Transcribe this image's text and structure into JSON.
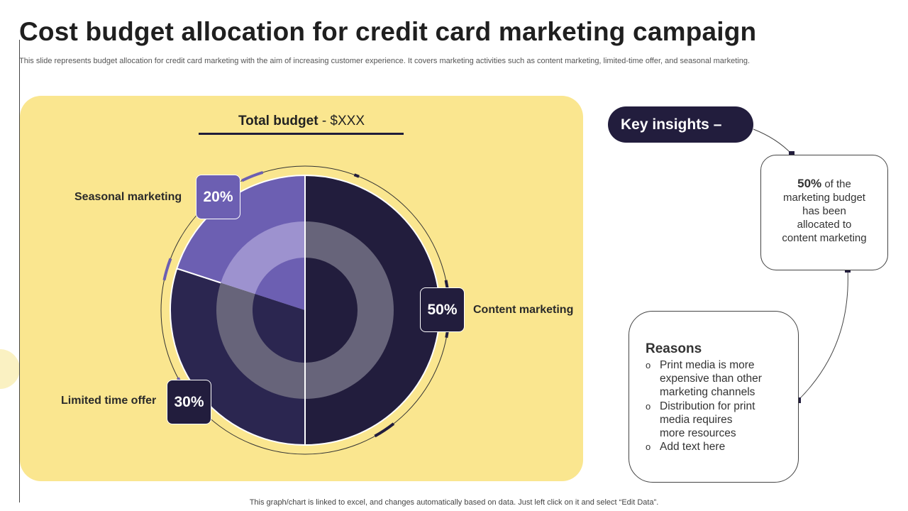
{
  "title": "Cost budget allocation for credit card marketing campaign",
  "subtitle": "This slide represents budget allocation for credit card marketing with the aim of increasing customer experience. It covers marketing activities such as content marketing, limited-time offer, and seasonal marketing.",
  "chart_data": {
    "type": "pie",
    "title_bold": "Total budget",
    "title_rest": " - $XXX",
    "categories": [
      "Content marketing",
      "Limited time offer",
      "Seasonal marketing"
    ],
    "values": [
      50,
      30,
      20
    ],
    "labels": [
      "50%",
      "30%",
      "20%"
    ],
    "colors": {
      "outer": [
        "#221d3d",
        "#2b2650",
        "#6c5fb2"
      ],
      "middle": [
        "#67647a",
        "#67647a",
        "#9d92cf"
      ],
      "inner": [
        "#221d3d",
        "#2b2650",
        "#6c5fb2"
      ],
      "panel": "#fae68f"
    }
  },
  "insights": {
    "heading": "Key insights –",
    "highlight_value": "50%",
    "highlight_lines": [
      " of the",
      "marketing budget",
      "has been",
      "allocated to",
      "content marketing"
    ],
    "reasons_title": "Reasons",
    "bullet_symbol": "o",
    "reasons": [
      [
        "Print media is more",
        "expensive than other",
        "marketing channels"
      ],
      [
        "Distribution for print",
        "media requires",
        "more resources"
      ],
      [
        "Add text here"
      ]
    ]
  },
  "footer": "This graph/chart is linked to excel,  and changes automatically based on data. Just left click on it and select “Edit Data”."
}
